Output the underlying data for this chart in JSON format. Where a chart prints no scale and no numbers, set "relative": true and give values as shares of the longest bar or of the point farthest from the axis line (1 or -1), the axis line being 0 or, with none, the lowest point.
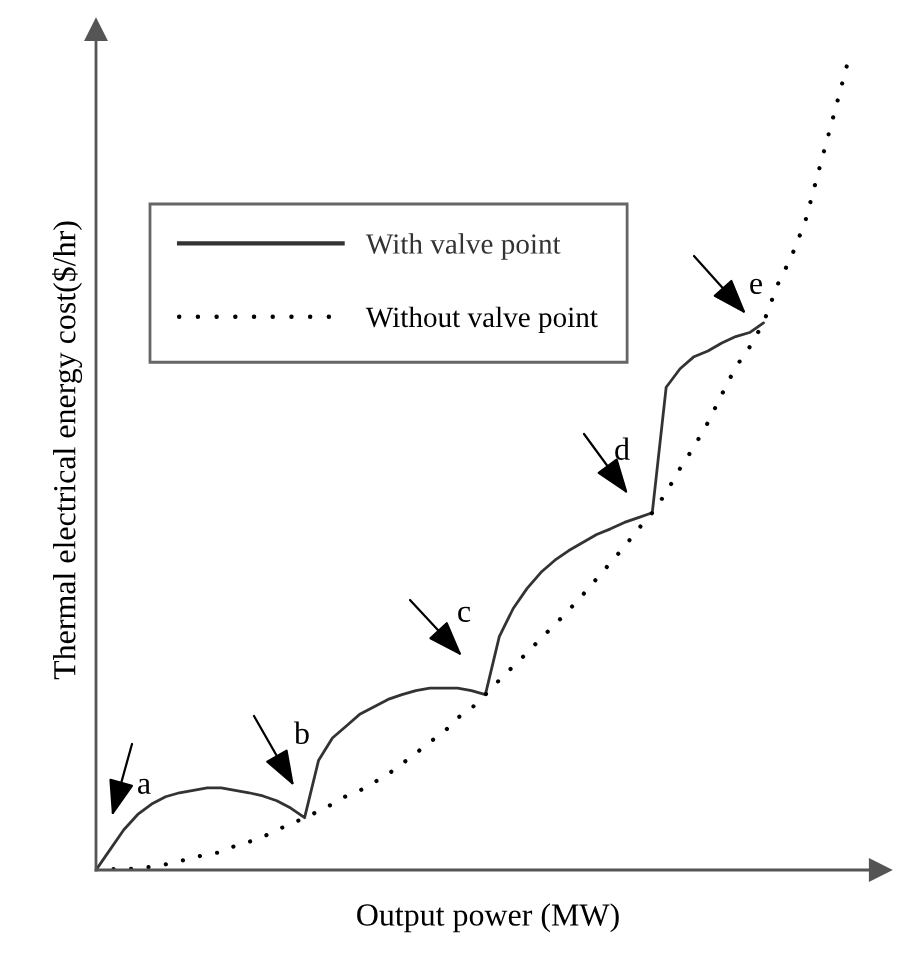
{
  "chart_data": {
    "type": "line",
    "relative": true,
    "xlabel": "Output power (MW)",
    "ylabel": "Thermal electrical energy cost($/hr)",
    "categories": [
      null,
      null,
      null,
      null,
      null,
      null,
      null,
      null,
      null,
      null,
      null,
      null,
      null,
      null,
      null,
      null,
      null,
      null,
      null,
      null,
      null,
      null,
      null,
      null,
      null,
      null,
      null,
      null,
      null,
      null,
      null,
      null,
      null,
      null,
      null,
      null,
      null,
      null,
      null,
      null,
      null,
      null,
      null,
      null,
      null,
      null,
      null,
      null,
      null,
      null,
      null,
      null,
      null,
      null,
      null
    ],
    "series": [
      {
        "name": "With valve point",
        "color": "#333333",
        "line_style": "solid",
        "values": [
          0,
          0.025,
          0.05,
          0.069,
          0.082,
          0.091,
          0.096,
          0.099,
          0.102,
          0.102,
          0.099,
          0.096,
          0.092,
          0.086,
          0.077,
          0.065,
          0.136,
          0.164,
          0.179,
          0.194,
          0.203,
          0.212,
          0.218,
          0.223,
          0.226,
          0.226,
          0.226,
          0.223,
          0.218,
          0.29,
          0.325,
          0.35,
          0.37,
          0.385,
          0.397,
          0.407,
          0.417,
          0.424,
          0.432,
          0.438,
          0.444,
          0.6,
          0.623,
          0.638,
          0.645,
          0.655,
          0.663,
          0.668,
          0.68,
          null,
          null,
          null,
          null,
          null,
          null
        ]
      },
      {
        "name": "Without valve point",
        "color": "#000000",
        "line_style": "dotted",
        "values": [
          0,
          0.001,
          0.001,
          0.002,
          0.004,
          0.007,
          0.011,
          0.015,
          0.02,
          0.022,
          0.03,
          0.035,
          0.041,
          0.05,
          0.057,
          0.065,
          0.073,
          0.082,
          0.092,
          0.099,
          0.109,
          0.119,
          0.132,
          0.145,
          0.159,
          0.171,
          0.189,
          0.201,
          0.218,
          0.236,
          0.253,
          0.27,
          0.288,
          0.305,
          0.323,
          0.342,
          0.362,
          0.382,
          0.402,
          0.424,
          0.444,
          0.469,
          0.499,
          0.526,
          0.556,
          0.591,
          0.625,
          0.65,
          0.68,
          0.727,
          0.762,
          0.806,
          0.871,
          0.935,
          1
        ]
      }
    ],
    "legend": "top left",
    "tick_labels": false,
    "annotations": [
      "a",
      "b",
      "c",
      "d",
      "e"
    ]
  }
}
